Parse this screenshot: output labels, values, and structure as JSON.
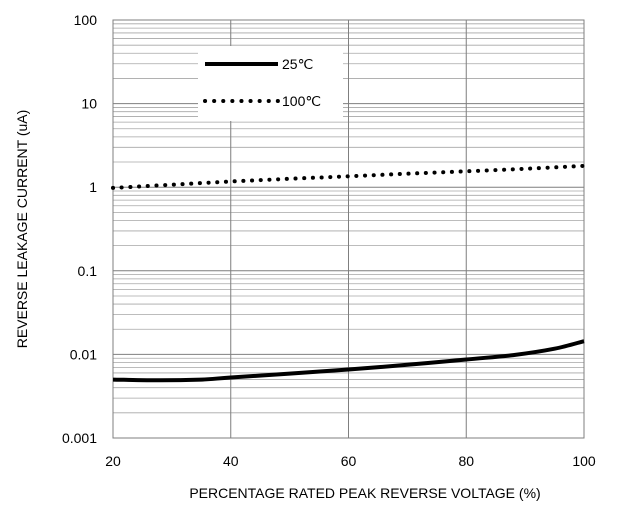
{
  "chart_data": {
    "type": "line",
    "xlabel": "PERCENTAGE RATED PEAK REVERSE VOLTAGE (%)",
    "ylabel": "REVERSE LEAKAGE CURRENT (uA)",
    "xlim": [
      20,
      100
    ],
    "ylim": [
      0.001,
      100
    ],
    "yscale": "log",
    "grid": true,
    "legend_position": "top-left",
    "x_ticks": [
      "20",
      "40",
      "60",
      "80",
      "100"
    ],
    "y_ticks": [
      "0.001",
      "0.01",
      "0.1",
      "1",
      "10",
      "100"
    ],
    "series": [
      {
        "name": "25℃",
        "style": "solid",
        "color": "#000000",
        "x": [
          20,
          28,
          35,
          40,
          50,
          60,
          70,
          80,
          88,
          95,
          100
        ],
        "y": [
          0.005,
          0.0049,
          0.005,
          0.0053,
          0.0059,
          0.0066,
          0.0075,
          0.0087,
          0.0098,
          0.0117,
          0.0144
        ]
      },
      {
        "name": "100℃",
        "style": "dotted",
        "color": "#000000",
        "x": [
          20,
          30,
          40,
          50,
          60,
          70,
          80,
          90,
          100
        ],
        "y": [
          0.98,
          1.07,
          1.17,
          1.26,
          1.35,
          1.45,
          1.55,
          1.66,
          1.8
        ]
      }
    ]
  }
}
